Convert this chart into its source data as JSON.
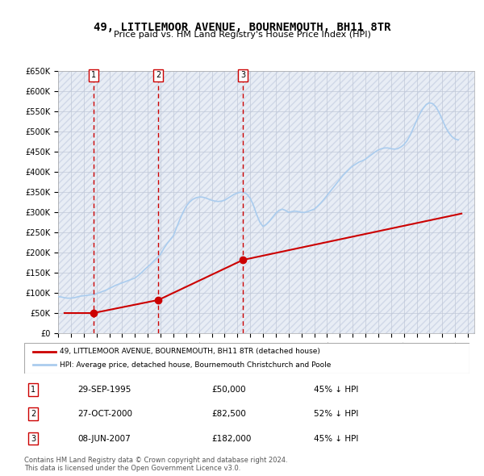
{
  "title": "49, LITTLEMOOR AVENUE, BOURNEMOUTH, BH11 8TR",
  "subtitle": "Price paid vs. HM Land Registry's House Price Index (HPI)",
  "footer_line1": "Contains HM Land Registry data © Crown copyright and database right 2024.",
  "footer_line2": "This data is licensed under the Open Government Licence v3.0.",
  "legend_line1": "49, LITTLEMOOR AVENUE, BOURNEMOUTH, BH11 8TR (detached house)",
  "legend_line2": "HPI: Average price, detached house, Bournemouth Christchurch and Poole",
  "sales": [
    {
      "label": "1",
      "date": "29-SEP-1995",
      "price": 50000,
      "year_x": 1995.75,
      "hpi_pct": "45% ↓ HPI"
    },
    {
      "label": "2",
      "date": "27-OCT-2000",
      "price": 82500,
      "year_x": 2000.83,
      "hpi_pct": "52% ↓ HPI"
    },
    {
      "label": "3",
      "date": "08-JUN-2007",
      "price": 182000,
      "year_x": 2007.44,
      "hpi_pct": "45% ↓ HPI"
    }
  ],
  "property_color": "#cc0000",
  "hpi_color": "#6699cc",
  "hpi_line_color": "#aaccee",
  "background_color": "#f0f4ff",
  "hatch_color": "#d0d8e8",
  "grid_color": "#c0c8d8",
  "xlim": [
    1993,
    2025.5
  ],
  "ylim": [
    0,
    650000
  ],
  "yticks": [
    0,
    50000,
    100000,
    150000,
    200000,
    250000,
    300000,
    350000,
    400000,
    450000,
    500000,
    550000,
    600000,
    650000
  ],
  "xticks": [
    1993,
    1994,
    1995,
    1996,
    1997,
    1998,
    1999,
    2000,
    2001,
    2002,
    2003,
    2004,
    2005,
    2006,
    2007,
    2008,
    2009,
    2010,
    2011,
    2012,
    2013,
    2014,
    2015,
    2016,
    2017,
    2018,
    2019,
    2020,
    2021,
    2022,
    2023,
    2024,
    2025
  ],
  "hpi_data_x": [
    1993.0,
    1993.25,
    1993.5,
    1993.75,
    1994.0,
    1994.25,
    1994.5,
    1994.75,
    1995.0,
    1995.25,
    1995.5,
    1995.75,
    1996.0,
    1996.25,
    1996.5,
    1996.75,
    1997.0,
    1997.25,
    1997.5,
    1997.75,
    1998.0,
    1998.25,
    1998.5,
    1998.75,
    1999.0,
    1999.25,
    1999.5,
    1999.75,
    2000.0,
    2000.25,
    2000.5,
    2000.75,
    2001.0,
    2001.25,
    2001.5,
    2001.75,
    2002.0,
    2002.25,
    2002.5,
    2002.75,
    2003.0,
    2003.25,
    2003.5,
    2003.75,
    2004.0,
    2004.25,
    2004.5,
    2004.75,
    2005.0,
    2005.25,
    2005.5,
    2005.75,
    2006.0,
    2006.25,
    2006.5,
    2006.75,
    2007.0,
    2007.25,
    2007.5,
    2007.75,
    2008.0,
    2008.25,
    2008.5,
    2008.75,
    2009.0,
    2009.25,
    2009.5,
    2009.75,
    2010.0,
    2010.25,
    2010.5,
    2010.75,
    2011.0,
    2011.25,
    2011.5,
    2011.75,
    2012.0,
    2012.25,
    2012.5,
    2012.75,
    2013.0,
    2013.25,
    2013.5,
    2013.75,
    2014.0,
    2014.25,
    2014.5,
    2014.75,
    2015.0,
    2015.25,
    2015.5,
    2015.75,
    2016.0,
    2016.25,
    2016.5,
    2016.75,
    2017.0,
    2017.25,
    2017.5,
    2017.75,
    2018.0,
    2018.25,
    2018.5,
    2018.75,
    2019.0,
    2019.25,
    2019.5,
    2019.75,
    2020.0,
    2020.25,
    2020.5,
    2020.75,
    2021.0,
    2021.25,
    2021.5,
    2021.75,
    2022.0,
    2022.25,
    2022.5,
    2022.75,
    2023.0,
    2023.25,
    2023.5,
    2023.75,
    2024.0,
    2024.25
  ],
  "hpi_data_y": [
    91000,
    90000,
    88000,
    87000,
    87000,
    88000,
    90000,
    92000,
    93000,
    94000,
    95000,
    96000,
    98000,
    101000,
    104000,
    107000,
    111000,
    115000,
    119000,
    122000,
    125000,
    128000,
    131000,
    134000,
    137000,
    143000,
    150000,
    158000,
    165000,
    172000,
    180000,
    188000,
    196000,
    210000,
    222000,
    232000,
    242000,
    262000,
    282000,
    300000,
    315000,
    325000,
    332000,
    336000,
    338000,
    338000,
    336000,
    333000,
    330000,
    328000,
    327000,
    328000,
    330000,
    335000,
    340000,
    345000,
    348000,
    350000,
    350000,
    345000,
    335000,
    318000,
    295000,
    276000,
    265000,
    270000,
    278000,
    288000,
    298000,
    305000,
    308000,
    305000,
    300000,
    302000,
    303000,
    302000,
    300000,
    300000,
    302000,
    305000,
    308000,
    315000,
    323000,
    332000,
    342000,
    352000,
    362000,
    372000,
    382000,
    392000,
    400000,
    408000,
    415000,
    420000,
    425000,
    428000,
    432000,
    438000,
    444000,
    450000,
    455000,
    458000,
    460000,
    460000,
    458000,
    457000,
    458000,
    462000,
    468000,
    478000,
    492000,
    510000,
    528000,
    545000,
    558000,
    568000,
    572000,
    570000,
    562000,
    548000,
    530000,
    512000,
    498000,
    488000,
    482000,
    480000
  ],
  "property_data_x": [
    1993.5,
    1995.75,
    2000.83,
    2007.44,
    2024.5
  ],
  "property_data_y": [
    50000,
    50000,
    82500,
    182000,
    297000
  ]
}
